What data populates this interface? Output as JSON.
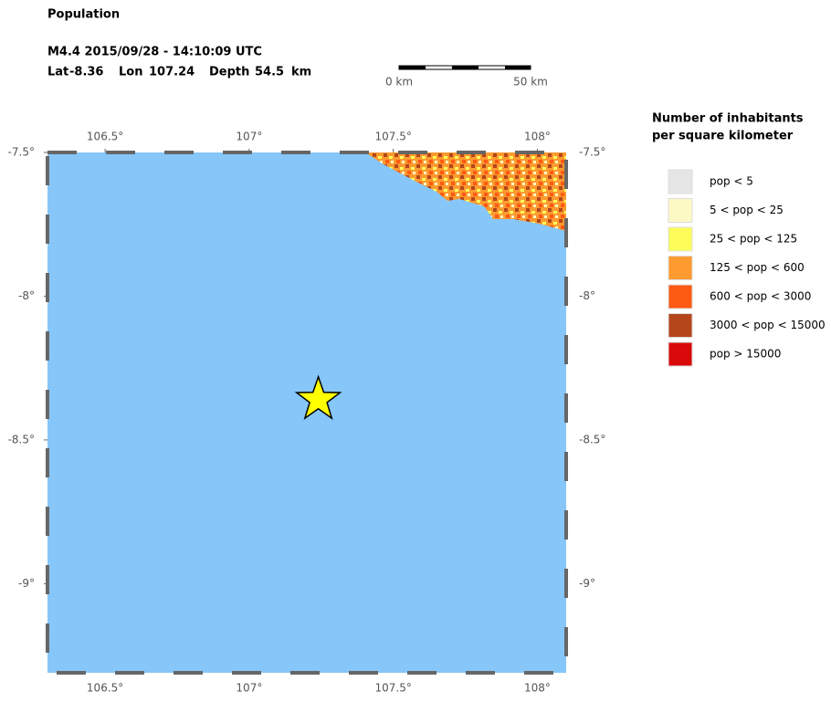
{
  "header": {
    "title": "Population",
    "event": "M4.4  2015/09/28 - 14:10:09 UTC",
    "location": [
      {
        "label": "Lat",
        "value": -8.36
      },
      {
        "label": "Lon",
        "value": 107.24
      },
      {
        "label": "Depth",
        "value": 54.5,
        "unit": "km"
      }
    ]
  },
  "scale_bar": {
    "start": "0 km",
    "end": "50 km"
  },
  "map": {
    "lonlim": [
      106.3,
      108.1
    ],
    "latlim": [
      -9.31,
      -7.5
    ],
    "lonticks": [
      {
        "value": 106.5,
        "label": "106.5°"
      },
      {
        "value": 107,
        "label": "107°"
      },
      {
        "value": 107.5,
        "label": "107.5°"
      },
      {
        "value": 108,
        "label": "108°"
      }
    ],
    "latticks": [
      {
        "value": -7.5,
        "label": "-7.5°"
      },
      {
        "value": -8,
        "label": "-8°"
      },
      {
        "value": -8.5,
        "label": "-8.5°"
      },
      {
        "value": -9,
        "label": "-9°"
      }
    ],
    "sea_color": "#87c6f8",
    "epicenter_color": "#ffff00"
  },
  "legend": {
    "title": [
      "Number of inhabitants",
      "per square kilometer"
    ],
    "items": [
      {
        "label": "pop < 5",
        "color": "#e6e6e6"
      },
      {
        "label": "5 < pop < 25",
        "color": "#fdf9c4"
      },
      {
        "label": "25 < pop < 125",
        "color": "#fdfd5a"
      },
      {
        "label": "125 < pop < 600",
        "color": "#fd9a30"
      },
      {
        "label": "600 < pop < 3000",
        "color": "#fd5a14"
      },
      {
        "label": "3000 < pop < 15000",
        "color": "#b4461a"
      },
      {
        "label": "pop > 15000",
        "color": "#d80a0a"
      }
    ]
  }
}
